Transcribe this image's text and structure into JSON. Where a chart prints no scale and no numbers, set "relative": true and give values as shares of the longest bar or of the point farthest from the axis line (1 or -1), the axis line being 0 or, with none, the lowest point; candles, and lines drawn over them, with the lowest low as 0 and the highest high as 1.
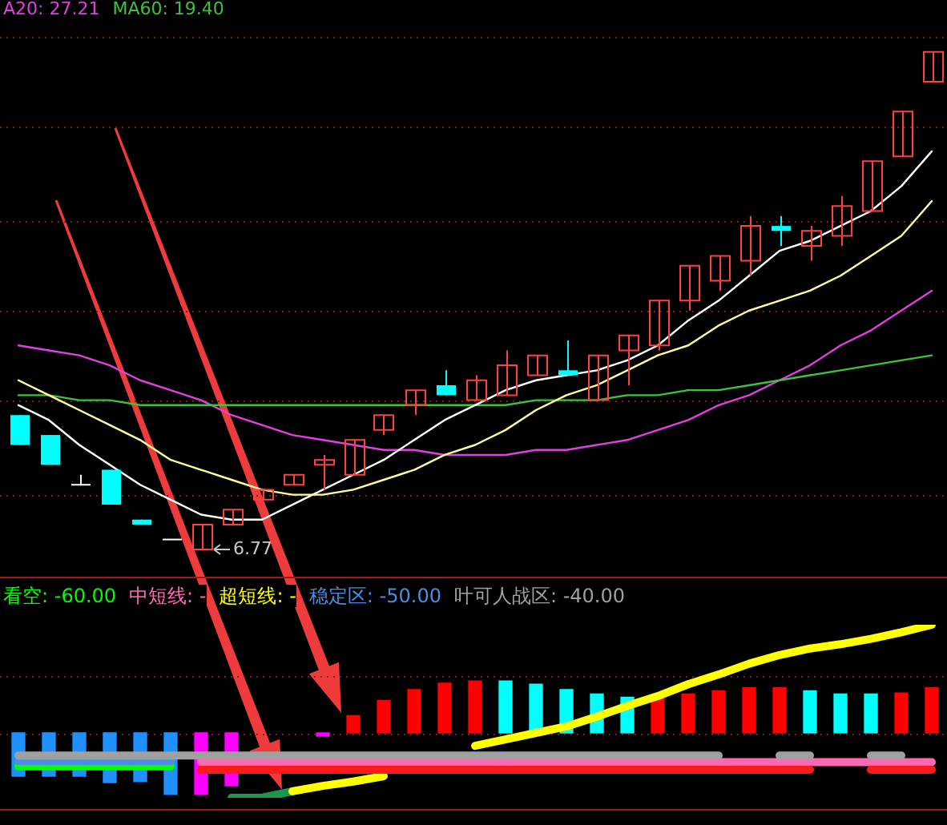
{
  "chart_data": [
    {
      "type": "candlestick",
      "relative": true,
      "legend": "top left",
      "marker": "none",
      "categories": [
        null,
        null,
        null,
        null,
        null,
        null,
        null,
        null,
        null,
        null,
        null,
        null,
        null,
        null,
        null,
        null,
        null,
        null,
        null,
        null,
        null,
        null,
        null,
        null,
        null,
        null,
        null,
        null,
        null,
        null,
        null
      ],
      "ohlc": [
        [
          0.27,
          0.27,
          0.21,
          0.21
        ],
        [
          0.23,
          0.23,
          0.17,
          0.17
        ],
        [
          0.13,
          0.15,
          0.13,
          0.13
        ],
        [
          0.16,
          0.16,
          0.09,
          0.09
        ],
        [
          0.06,
          0.06,
          0.05,
          0.05
        ],
        [
          0.02,
          0.02,
          0.02,
          0.02
        ],
        [
          0,
          0.05,
          0,
          0.05
        ],
        [
          0.05,
          0.08,
          0.05,
          0.08
        ],
        [
          0.1,
          0.12,
          0.1,
          0.12
        ],
        [
          0.13,
          0.15,
          0.13,
          0.15
        ],
        [
          0.17,
          0.19,
          0.12,
          0.18
        ],
        [
          0.15,
          0.22,
          0.15,
          0.22
        ],
        [
          0.24,
          0.27,
          0.23,
          0.27
        ],
        [
          0.29,
          0.32,
          0.27,
          0.32
        ],
        [
          0.33,
          0.36,
          0.31,
          0.31
        ],
        [
          0.3,
          0.35,
          0.3,
          0.34
        ],
        [
          0.31,
          0.4,
          0.31,
          0.37
        ],
        [
          0.35,
          0.39,
          0.35,
          0.39
        ],
        [
          0.36,
          0.42,
          0.35,
          0.35
        ],
        [
          0.3,
          0.39,
          0.3,
          0.39
        ],
        [
          0.4,
          0.43,
          0.33,
          0.43
        ],
        [
          0.41,
          0.5,
          0.4,
          0.5
        ],
        [
          0.5,
          0.57,
          0.48,
          0.57
        ],
        [
          0.54,
          0.59,
          0.52,
          0.59
        ],
        [
          0.58,
          0.67,
          0.55,
          0.65
        ],
        [
          0.65,
          0.67,
          0.61,
          0.64
        ],
        [
          0.61,
          0.65,
          0.58,
          0.64
        ],
        [
          0.63,
          0.71,
          0.61,
          0.69
        ],
        [
          0.68,
          0.78,
          0.68,
          0.78
        ],
        [
          0.79,
          0.88,
          0.79,
          0.88
        ],
        [
          0.94,
          1,
          0.94,
          1
        ]
      ],
      "colors": [
        "#00ffff",
        "#00ffff",
        "#ffffff",
        "#00ffff",
        "#00ffff",
        "#ffffff",
        "#ff4040",
        "#ff4040",
        "#ff4040",
        "#ff4040",
        "#ff4040",
        "#ff4040",
        "#ff4040",
        "#ff4040",
        "#00ffff",
        "#ff4040",
        "#ff4040",
        "#ff4040",
        "#00ffff",
        "#ff4040",
        "#ff4040",
        "#ff4040",
        "#ff4040",
        "#ff4040",
        "#ff4040",
        "#00ffff",
        "#ff4040",
        "#ff4040",
        "#ff4040",
        "#ff4040",
        "#ff4040"
      ],
      "series": [
        {
          "type": "line",
          "name": "A20: 27.21",
          "color": "#e040e0",
          "values": [
            0.41,
            0.4,
            0.39,
            0.37,
            0.34,
            0.32,
            0.3,
            0.27,
            0.25,
            0.23,
            0.22,
            0.21,
            0.2,
            0.2,
            0.19,
            0.19,
            0.19,
            0.2,
            0.2,
            0.21,
            0.22,
            0.24,
            0.26,
            0.29,
            0.31,
            0.34,
            0.37,
            0.41,
            0.44,
            0.48,
            0.52
          ]
        },
        {
          "type": "line",
          "name": "MA60: 19.40",
          "color": "#40c040",
          "values": [
            0.31,
            0.31,
            0.3,
            0.3,
            0.29,
            0.29,
            0.29,
            0.29,
            0.29,
            0.29,
            0.29,
            0.29,
            0.29,
            0.29,
            0.29,
            0.29,
            0.29,
            0.3,
            0.3,
            0.3,
            0.31,
            0.31,
            0.32,
            0.32,
            0.33,
            0.34,
            0.35,
            0.36,
            0.37,
            0.38,
            0.39
          ]
        },
        {
          "type": "line",
          "color": "#ffffff",
          "values": [
            0.29,
            0.26,
            0.21,
            0.17,
            0.13,
            0.1,
            0.07,
            0.06,
            0.06,
            0.09,
            0.12,
            0.15,
            0.18,
            0.22,
            0.26,
            0.29,
            0.32,
            0.34,
            0.35,
            0.36,
            0.38,
            0.41,
            0.46,
            0.5,
            0.55,
            0.6,
            0.62,
            0.65,
            0.68,
            0.73,
            0.8
          ]
        },
        {
          "type": "line",
          "color": "#ffff99",
          "values": [
            0.34,
            0.31,
            0.28,
            0.25,
            0.22,
            0.18,
            0.16,
            0.14,
            0.12,
            0.11,
            0.11,
            0.12,
            0.14,
            0.16,
            0.19,
            0.21,
            0.24,
            0.28,
            0.31,
            0.33,
            0.36,
            0.39,
            0.41,
            0.45,
            0.48,
            0.5,
            0.52,
            0.55,
            0.59,
            0.63,
            0.7
          ]
        }
      ],
      "annotations": [
        "6.77"
      ],
      "ref_lines": [
        {
          "axis": "y",
          "value": 1.03,
          "color": "#8a1a1a",
          "line_style": "dotted"
        },
        {
          "axis": "y",
          "value": 0.85,
          "color": "#8a1a1a",
          "line_style": "dotted"
        },
        {
          "axis": "y",
          "value": 0.66,
          "color": "#8a1a1a",
          "line_style": "dotted"
        },
        {
          "axis": "y",
          "value": 0.48,
          "color": "#8a1a1a",
          "line_style": "dotted"
        },
        {
          "axis": "y",
          "value": 0.3,
          "color": "#8a1a1a",
          "line_style": "dotted"
        },
        {
          "axis": "y",
          "value": 0.11,
          "color": "#8a1a1a",
          "line_style": "dotted"
        }
      ]
    },
    {
      "type": "bar",
      "relative": true,
      "legend": "top left",
      "marker": "none",
      "ref_lines": [
        {
          "axis": "y",
          "value": 0.52,
          "color": "#8a1a1a",
          "line_style": "dotted"
        },
        {
          "axis": "y",
          "value": 0,
          "color": "#8a1a1a",
          "line_style": "dotted"
        }
      ],
      "categories": [
        null,
        null,
        null,
        null,
        null,
        null,
        null,
        null,
        null,
        null,
        null,
        null,
        null,
        null,
        null,
        null,
        null,
        null,
        null,
        null,
        null,
        null,
        null,
        null,
        null,
        null,
        null,
        null,
        null,
        null,
        null
      ],
      "series": [
        {
          "type": "bar",
          "colors": [
            "#1e90ff",
            "#1e90ff",
            "#1e90ff",
            "#1e90ff",
            "#1e90ff",
            "#1e90ff",
            "#ff00ff",
            "#ff00ff",
            "#ff00ff",
            "#ff00ff",
            "#ff00ff",
            "#ff0000",
            "#ff0000",
            "#ff0000",
            "#ff0000",
            "#ff0000",
            "#00ffff",
            "#00ffff",
            "#00ffff",
            "#00ffff",
            "#00ffff",
            "#ff0000",
            "#ff0000",
            "#ff0000",
            "#ff0000",
            "#ff0000",
            "#00ffff",
            "#00ffff",
            "#00ffff",
            "#ff0000",
            "#ff0000"
          ],
          "values": [
            -0.4,
            -0.4,
            -0.4,
            -0.46,
            -0.45,
            -0.57,
            -0.57,
            -0.49,
            null,
            null,
            -0.03,
            0.16,
            0.3,
            0.4,
            0.46,
            0.48,
            0.48,
            0.45,
            0.4,
            0.36,
            0.33,
            0.33,
            0.36,
            0.39,
            0.42,
            0.42,
            0.39,
            0.36,
            0.36,
            0.37,
            0.42
          ]
        },
        {
          "type": "line",
          "color": "#1a9850",
          "values": [
            null,
            null,
            null,
            null,
            null,
            null,
            null,
            -0.6,
            -0.6,
            -0.54,
            null,
            null,
            null,
            null,
            null,
            null,
            null,
            null,
            null,
            null,
            null,
            null,
            null,
            null,
            null,
            null,
            null,
            null,
            null,
            null,
            null
          ]
        },
        {
          "type": "line",
          "name": "看空: -60.00",
          "color": "#00ff00",
          "values": [
            -0.31,
            -0.31,
            -0.31,
            -0.31,
            -0.31,
            -0.31,
            null,
            null,
            null,
            null,
            null,
            null,
            null,
            null,
            null,
            null,
            null,
            null,
            null,
            null,
            null,
            null,
            null,
            null,
            null,
            null,
            null,
            null,
            null,
            null,
            null
          ]
        },
        {
          "type": "line",
          "name": "中短线: -",
          "color": "#ff69b4",
          "values": [
            null,
            null,
            null,
            null,
            null,
            null,
            -0.27,
            -0.27,
            -0.27,
            -0.27,
            -0.27,
            -0.27,
            -0.27,
            -0.27,
            -0.27,
            -0.27,
            -0.27,
            -0.27,
            -0.27,
            -0.27,
            -0.27,
            -0.27,
            -0.27,
            -0.27,
            -0.27,
            -0.27,
            -0.27,
            -0.27,
            -0.27,
            -0.27,
            -0.27
          ]
        },
        {
          "type": "line",
          "name": "超短线: -",
          "color": "#ffff00",
          "values": [
            null,
            null,
            null,
            null,
            null,
            null,
            null,
            null,
            null,
            -0.54,
            -0.49,
            -0.45,
            -0.4,
            null,
            null,
            -0.12,
            -0.06,
            0,
            0.06,
            0.15,
            0.25,
            0.34,
            0.45,
            0.54,
            0.64,
            0.72,
            0.78,
            0.82,
            0.87,
            0.93,
            1
          ]
        },
        {
          "type": "line",
          "name": "稳定区: -50.00",
          "color": "#4a8fe0",
          "values": [
            -0.26,
            -0.26,
            -0.26,
            -0.26,
            -0.26,
            -0.26,
            null,
            null,
            null,
            null,
            null,
            null,
            null,
            null,
            null,
            null,
            null,
            null,
            null,
            null,
            null,
            null,
            null,
            null,
            null,
            null,
            null,
            null,
            null,
            null,
            null
          ]
        },
        {
          "type": "line",
          "name": "叶可人战区: -40.00",
          "color": "#a0a0a0",
          "values": [
            -0.21,
            -0.21,
            -0.21,
            -0.21,
            -0.21,
            -0.21,
            -0.21,
            -0.21,
            -0.21,
            -0.21,
            -0.21,
            -0.21,
            -0.21,
            -0.21,
            -0.21,
            -0.21,
            -0.21,
            -0.21,
            -0.21,
            -0.21,
            -0.21,
            -0.21,
            -0.21,
            -0.21,
            null,
            -0.21,
            -0.21,
            null,
            -0.21,
            -0.21,
            null
          ]
        },
        {
          "type": "line",
          "color": "#ff1a1a",
          "values": [
            null,
            null,
            null,
            null,
            null,
            null,
            -0.34,
            -0.34,
            -0.34,
            -0.34,
            -0.34,
            -0.34,
            -0.34,
            -0.34,
            -0.34,
            -0.34,
            -0.34,
            -0.34,
            -0.34,
            -0.34,
            -0.34,
            -0.34,
            -0.34,
            -0.34,
            -0.34,
            -0.34,
            -0.34,
            null,
            -0.34,
            -0.34,
            -0.34
          ]
        }
      ]
    }
  ]
}
